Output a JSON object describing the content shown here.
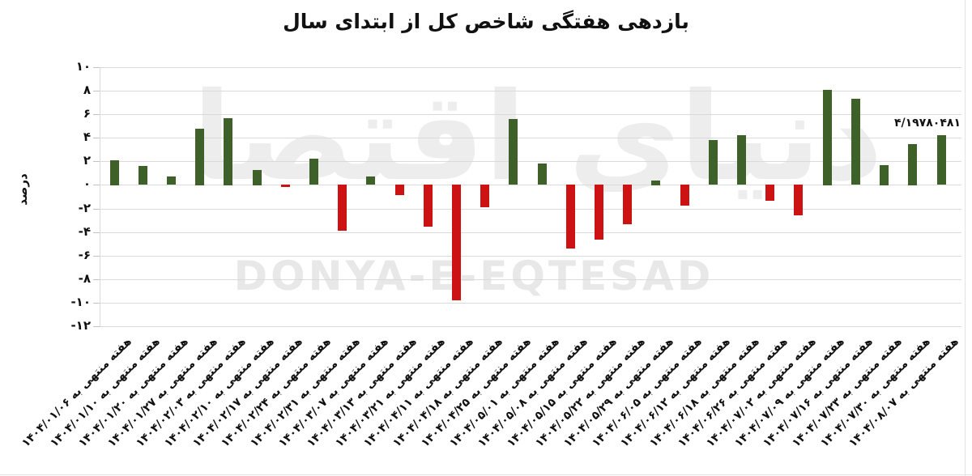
{
  "chart_data": {
    "type": "bar",
    "title": "بازدهی هفتگی شاخص کل از ابتدای سال",
    "xlabel": "",
    "ylabel": "درصد",
    "ylim": [
      -12,
      10
    ],
    "grid": true,
    "legend": "none",
    "watermark_persian": "دنیای اقتصاد",
    "watermark_latin": "DONYA-E-EQTESAD",
    "annotation": {
      "text": "۴/۱۹۷۸۰۴۸۱",
      "meaning": "4.19780481",
      "applies_to_category": "هفته منتهی به ۱۴۰۴/۰۸/۰۷"
    },
    "y_ticks": [
      {
        "label": "۱۰",
        "value": 10
      },
      {
        "label": "۸",
        "value": 8
      },
      {
        "label": "۶",
        "value": 6
      },
      {
        "label": "۴",
        "value": 4
      },
      {
        "label": "۲",
        "value": 2
      },
      {
        "label": "۰",
        "value": 0
      },
      {
        "label": "-۲",
        "value": -2
      },
      {
        "label": "-۴",
        "value": -4
      },
      {
        "label": "-۶",
        "value": -6
      },
      {
        "label": "-۸",
        "value": -8
      },
      {
        "label": "-۱۰",
        "value": -10
      },
      {
        "label": "-۱۲",
        "value": -12
      }
    ],
    "categories": [
      "هفته منتهی به ۱۴۰۴/۰۱/۰۶",
      "هفته منتهی به ۱۴۰۴/۰۱/۱۰",
      "هفته منتهی به ۱۴۰۴/۰۱/۲۰",
      "هفته منتهی به ۱۴۰۴/۰۱/۲۷",
      "هفته منتهی به ۱۴۰۴/۰۲/۰۳",
      "هفته منتهی به ۱۴۰۴/۰۲/۱۰",
      "هفته منتهی به ۱۴۰۴/۰۲/۱۷",
      "هفته منتهی به ۱۴۰۴/۰۲/۲۴",
      "هفته منتهی به ۱۴۰۴/۰۲/۳۱",
      "هفته منتهی به ۱۴۰۴/۰۳/۰۷",
      "هفته منتهی به ۱۴۰۴/۰۳/۱۳",
      "هفته منتهی به ۱۴۰۴/۰۳/۲۱",
      "هفته منتهی به ۱۴۰۴/۰۴/۱۱",
      "هفته منتهی به ۱۴۰۴/۰۴/۱۸",
      "هفته منتهی به ۱۴۰۴/۰۴/۲۵",
      "هفته منتهی به ۱۴۰۴/۰۵/۰۱",
      "هفته منتهی به ۱۴۰۴/۰۵/۰۸",
      "هفته منتهی به ۱۴۰۴/۰۵/۱۵",
      "هفته منتهی به ۱۴۰۴/۰۵/۲۲",
      "هفته منتهی به ۱۴۰۴/۰۵/۲۹",
      "هفته منتهی به ۱۴۰۴/۰۶/۰۵",
      "هفته منتهی به ۱۴۰۴/۰۶/۱۲",
      "هفته منتهی به ۱۴۰۴/۰۶/۱۸",
      "هفته منتهی به ۱۴۰۴/۰۶/۲۶",
      "هفته منتهی به ۱۴۰۴/۰۷/۰۲",
      "هفته منتهی به ۱۴۰۴/۰۷/۰۹",
      "هفته منتهی به ۱۴۰۴/۰۷/۱۶",
      "هفته منتهی به ۱۴۰۴/۰۷/۲۳",
      "هفته منتهی به ۱۴۰۴/۰۷/۳۰",
      "هفته منتهی به ۱۴۰۴/۰۸/۰۷"
    ],
    "values": [
      2.1,
      1.6,
      0.7,
      4.8,
      5.7,
      1.3,
      -0.2,
      2.2,
      -3.9,
      0.7,
      -0.9,
      -3.6,
      -9.8,
      -1.9,
      5.6,
      1.8,
      -5.4,
      -4.7,
      -3.4,
      0.4,
      -1.8,
      3.8,
      4.2,
      -1.4,
      -2.6,
      8.1,
      7.3,
      1.7,
      3.5,
      4.1978
    ],
    "colors": {
      "positive": "#3d6128",
      "negative": "#cc1212",
      "gridline": "#dadada",
      "text": "#111111",
      "watermark": "#ededed"
    }
  }
}
